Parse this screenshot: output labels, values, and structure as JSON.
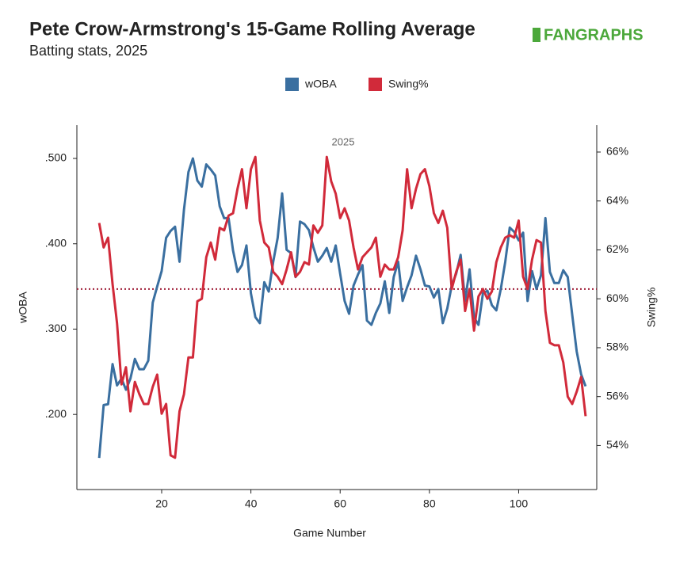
{
  "chart_data": {
    "type": "line",
    "title": "Pete Crow-Armstrong's 15-Game Rolling Average",
    "subtitle": "Batting stats, 2025",
    "logo": "FANGRAPHS",
    "annotation": "2025",
    "xlabel": "Game Number",
    "ylabel": "wOBA",
    "y2label": "Swing%",
    "xlim": [
      1,
      117.5
    ],
    "xticks": [
      20,
      40,
      60,
      80,
      100
    ],
    "ylim": [
      0.112,
      0.539
    ],
    "yticks": [
      {
        "value": 0.2,
        "label": ".200"
      },
      {
        "value": 0.3,
        "label": ".300"
      },
      {
        "value": 0.4,
        "label": ".400"
      },
      {
        "value": 0.5,
        "label": ".500"
      }
    ],
    "y2lim": [
      52.2,
      67.1
    ],
    "y2ticks": [
      {
        "value": 54,
        "label": "54%"
      },
      {
        "value": 56,
        "label": "56%"
      },
      {
        "value": 58,
        "label": "58%"
      },
      {
        "value": 60,
        "label": "60%"
      },
      {
        "value": 62,
        "label": "62%"
      },
      {
        "value": 64,
        "label": "64%"
      },
      {
        "value": 66,
        "label": "66%"
      }
    ],
    "hline": {
      "value": 0.347,
      "color": "#a0203a"
    },
    "x": [
      6,
      7,
      8,
      9,
      10,
      11,
      12,
      13,
      14,
      15,
      16,
      17,
      18,
      19,
      20,
      21,
      22,
      23,
      24,
      25,
      26,
      27,
      28,
      29,
      30,
      31,
      32,
      33,
      34,
      35,
      36,
      37,
      38,
      39,
      40,
      41,
      42,
      43,
      44,
      45,
      46,
      47,
      48,
      49,
      50,
      51,
      52,
      53,
      54,
      55,
      56,
      57,
      58,
      59,
      60,
      61,
      62,
      63,
      64,
      65,
      66,
      67,
      68,
      69,
      70,
      71,
      72,
      73,
      74,
      75,
      76,
      77,
      78,
      79,
      80,
      81,
      82,
      83,
      84,
      85,
      86,
      87,
      88,
      89,
      90,
      91,
      92,
      93,
      94,
      95,
      96,
      97,
      98,
      99,
      100,
      101,
      102,
      103,
      104,
      105,
      106,
      107,
      108,
      109,
      110,
      111,
      112,
      113,
      114,
      115
    ],
    "series": [
      {
        "name": "wOBA",
        "color": "#3a6fa0",
        "axis": "y",
        "values": [
          0.149,
          0.211,
          0.212,
          0.259,
          0.234,
          0.242,
          0.229,
          0.242,
          0.265,
          0.253,
          0.253,
          0.263,
          0.331,
          0.35,
          0.368,
          0.407,
          0.415,
          0.42,
          0.379,
          0.44,
          0.484,
          0.5,
          0.474,
          0.467,
          0.493,
          0.487,
          0.48,
          0.444,
          0.43,
          0.43,
          0.392,
          0.367,
          0.375,
          0.398,
          0.342,
          0.314,
          0.307,
          0.355,
          0.344,
          0.379,
          0.407,
          0.459,
          0.393,
          0.389,
          0.361,
          0.426,
          0.423,
          0.416,
          0.396,
          0.379,
          0.386,
          0.395,
          0.379,
          0.398,
          0.365,
          0.333,
          0.318,
          0.351,
          0.364,
          0.375,
          0.31,
          0.305,
          0.319,
          0.33,
          0.356,
          0.319,
          0.361,
          0.379,
          0.333,
          0.349,
          0.363,
          0.386,
          0.37,
          0.351,
          0.35,
          0.337,
          0.347,
          0.307,
          0.324,
          0.351,
          0.365,
          0.387,
          0.333,
          0.37,
          0.314,
          0.305,
          0.342,
          0.345,
          0.328,
          0.322,
          0.347,
          0.379,
          0.419,
          0.414,
          0.404,
          0.413,
          0.333,
          0.368,
          0.347,
          0.363,
          0.43,
          0.367,
          0.354,
          0.354,
          0.369,
          0.361,
          0.317,
          0.274,
          0.247,
          0.233
        ]
      },
      {
        "name": "Swing%",
        "color": "#d12a3a",
        "axis": "y2",
        "values": [
          63.1,
          62.1,
          62.5,
          60.6,
          59.0,
          56.5,
          57.2,
          55.4,
          56.6,
          56.1,
          55.7,
          55.7,
          56.4,
          56.9,
          55.3,
          55.7,
          53.6,
          53.5,
          55.4,
          56.1,
          57.6,
          57.6,
          59.9,
          60.0,
          61.7,
          62.3,
          61.6,
          62.9,
          62.8,
          63.4,
          63.5,
          64.5,
          65.3,
          63.7,
          65.3,
          65.8,
          63.2,
          62.3,
          62.1,
          61.1,
          60.9,
          60.6,
          61.2,
          61.9,
          60.9,
          61.1,
          61.5,
          61.4,
          63.0,
          62.7,
          63.0,
          65.8,
          64.8,
          64.3,
          63.3,
          63.7,
          63.2,
          62.1,
          61.2,
          61.7,
          61.9,
          62.1,
          62.5,
          60.9,
          61.4,
          61.2,
          61.2,
          61.7,
          62.8,
          65.3,
          63.7,
          64.5,
          65.1,
          65.3,
          64.6,
          63.5,
          63.1,
          63.6,
          62.9,
          60.4,
          61.1,
          61.6,
          59.5,
          60.4,
          58.7,
          60.1,
          60.4,
          60.0,
          60.3,
          61.5,
          62.1,
          62.5,
          62.6,
          62.5,
          63.2,
          60.9,
          60.4,
          61.6,
          62.4,
          62.3,
          59.5,
          58.2,
          58.1,
          58.1,
          57.4,
          56.0,
          55.7,
          56.2,
          56.8,
          55.2
        ]
      }
    ],
    "legend": "top"
  }
}
